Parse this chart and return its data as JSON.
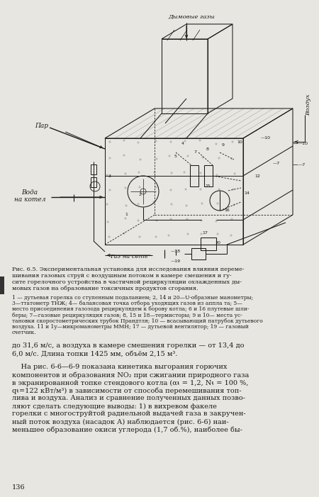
{
  "page_bg": "#e8e6e0",
  "fig_width": 4.5,
  "fig_height": 7.01,
  "dpi": 100,
  "caption_title": "Рис. 6.5. Экспериментальная установка для исследования влияния переме-\nшивания газовых струй с воздушным потоком в камере смешения и гу-\nсите горелочного устройства в частичной рециркуляции охлажденных ды-\nмовых газов на образование токсичных продуктов сгорания.",
  "caption_items": "1 — дутьевая горелка со ступенным подаланием; 2, 14 и 20—U-образные манометры;\n3—ттатометр ТНЖ; 4— балансовая точка отбора уходящих газов из аппла та; 5—\nместо присоединения газозода рециркулядем к борову котла; 6 и 16 плутевые шли-\nберы; 7—газовые рециркуляция газов; 8, 15 и 18—термисторы; 9 и 10— места ус-\nтановки скоростометрических трубок Прандтля; 10 — всасывающий патрубок дутьевого\nвоздуха. 11 и 1у—микроманометры ММН; 17 — дутьевой вентилятор; 19 — газовый\nсчетчик.",
  "body_text_1": "до 31,6 м/с, а воздуха в камере смешения горелки — от 13,4 до\n6,0 м/с. Длина топки 1425 мм, объём 2,15 м³.",
  "body_text_2": "    На рис. 6-6—6-9 показана кинетика выгорания горючих\nкомпонентов и образования NO₂ при сжигании природного газа\nв экранированной топке стендового котла (αᵼ = 1,2, Nᵼ = 100 %,\nqᵼ=122 кВт/м³) в зависимости от способа перемешивания топ-\nлива и воздуха. Анализ и сравнение полученных данных позво-\nляют сделать следующие выводы: 1) в вихревом факеле\nгорелки с многоструйтой радиельной выдачей газа в закручен-\nный поток воздуха (насадок А) наблюдается (рис. 6-6) наи-\nменьшее образование окиси углерода (1,7 об.%), наиболее бы-",
  "page_number": "136"
}
